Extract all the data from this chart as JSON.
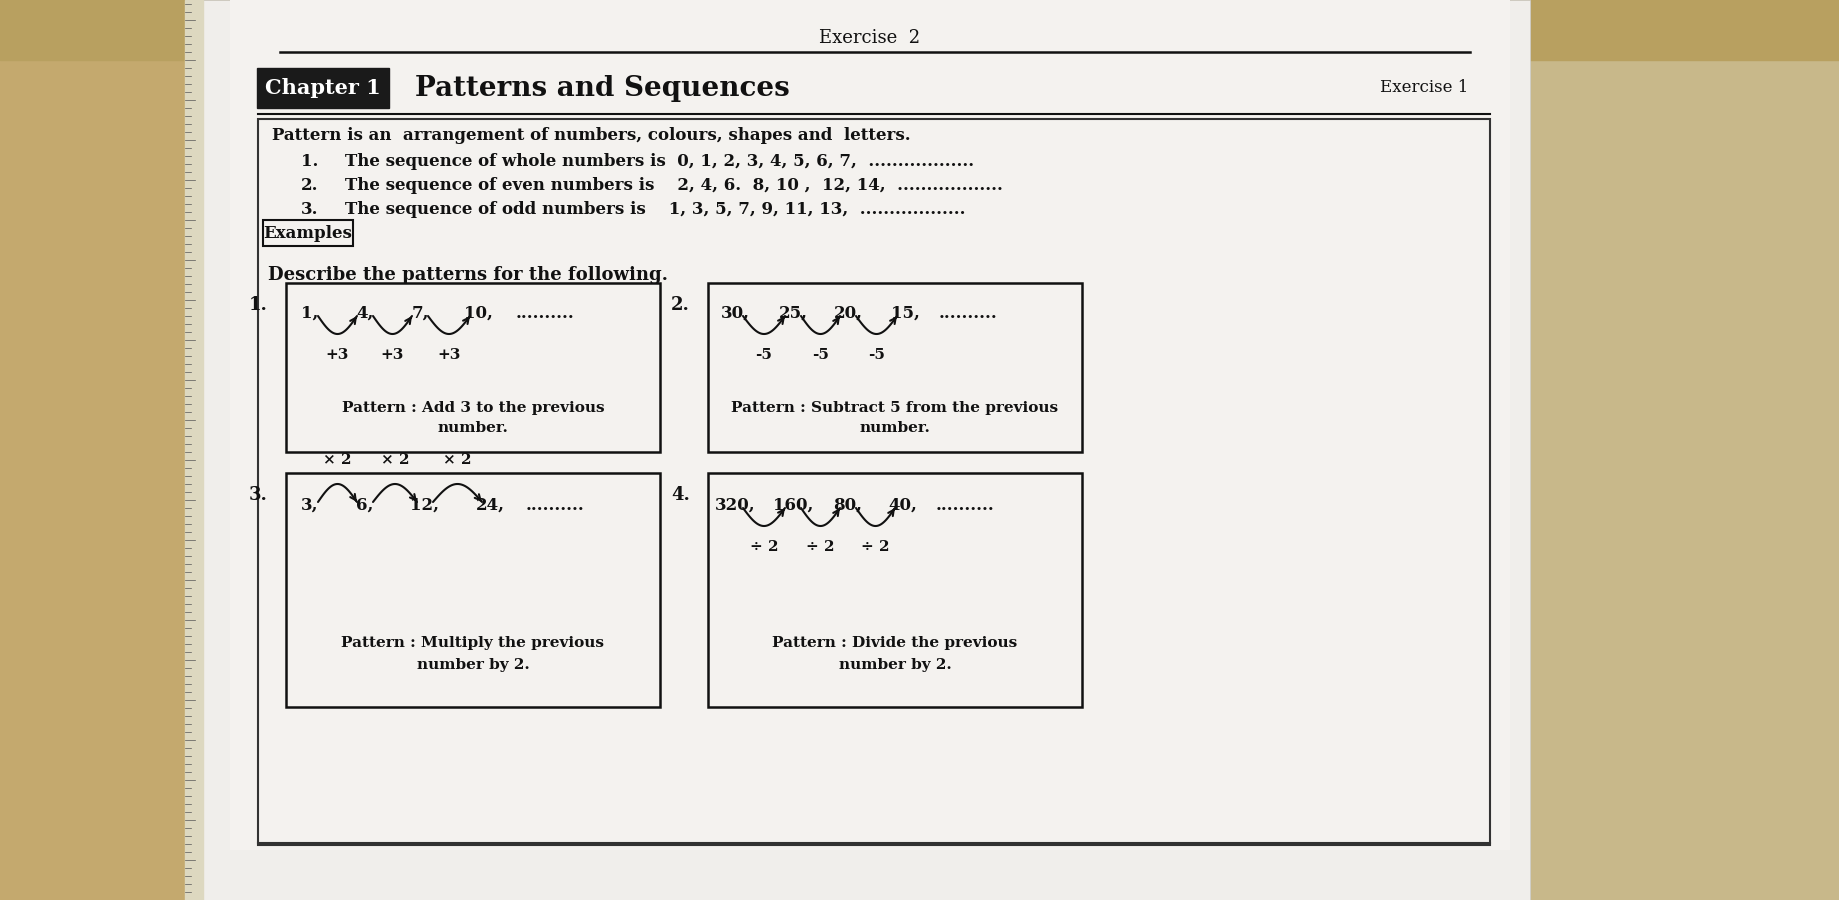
{
  "bg_left_color": "#c8b99a",
  "bg_right_color": "#d4ccc0",
  "paper_color": "#f2f0ed",
  "paper2_color": "#e8e6e3",
  "title_top": "Exercise  2",
  "chapter_text": "Chapter 1",
  "chapter_title": "Patterns and Sequences",
  "exercise_label": "Exercise 1",
  "pattern_def": "Pattern is an  arrangement of numbers, colours, shapes and  letters.",
  "seq_lines": [
    {
      "num": "1.",
      "text": "The sequence of whole numbers is  0, 1, 2, 3, 4, 5, 6, 7,  .................."
    },
    {
      "num": "2.",
      "text": "The sequence of even numbers is    2, 4, 6.  8, 10 ,  12, 14,  .................."
    },
    {
      "num": "3.",
      "text": "The sequence of odd numbers is    1, 3, 5, 7, 9, 11, 13,  .................."
    }
  ],
  "examples_label": "Examples",
  "describe_text": "Describe the patterns for the following.",
  "box1_num": "1.",
  "box1_seq_vals": [
    "1,",
    "4,",
    "7,",
    "10,",
    ".........."
  ],
  "box1_ops": [
    "+3",
    "+3",
    "+3"
  ],
  "box1_pattern1": "Pattern : Add 3 to the previous",
  "box1_pattern2": "number.",
  "box2_num": "2.",
  "box2_seq_vals": [
    "30,",
    "25,",
    "20,",
    "15,",
    ".........."
  ],
  "box2_ops": [
    "-5",
    "-5",
    "-5"
  ],
  "box2_pattern1": "Pattern : Subtract 5 from the previous",
  "box2_pattern2": "number.",
  "box3_num": "3.",
  "box3_seq_vals": [
    "3,",
    "6,",
    "12,",
    "24,",
    ".........."
  ],
  "box3_ops": [
    "× 2",
    "× 2",
    "× 2"
  ],
  "box3_pattern1": "Pattern : Multiply the previous",
  "box3_pattern2": "number by 2.",
  "box4_num": "4.",
  "box4_seq_vals": [
    "320,",
    "160,",
    "80,",
    "40,",
    ".........."
  ],
  "box4_ops": [
    "÷ 2",
    "÷ 2",
    "÷ 2"
  ],
  "box4_pattern1": "Pattern : Divide the previous",
  "box4_pattern2": "number by 2."
}
